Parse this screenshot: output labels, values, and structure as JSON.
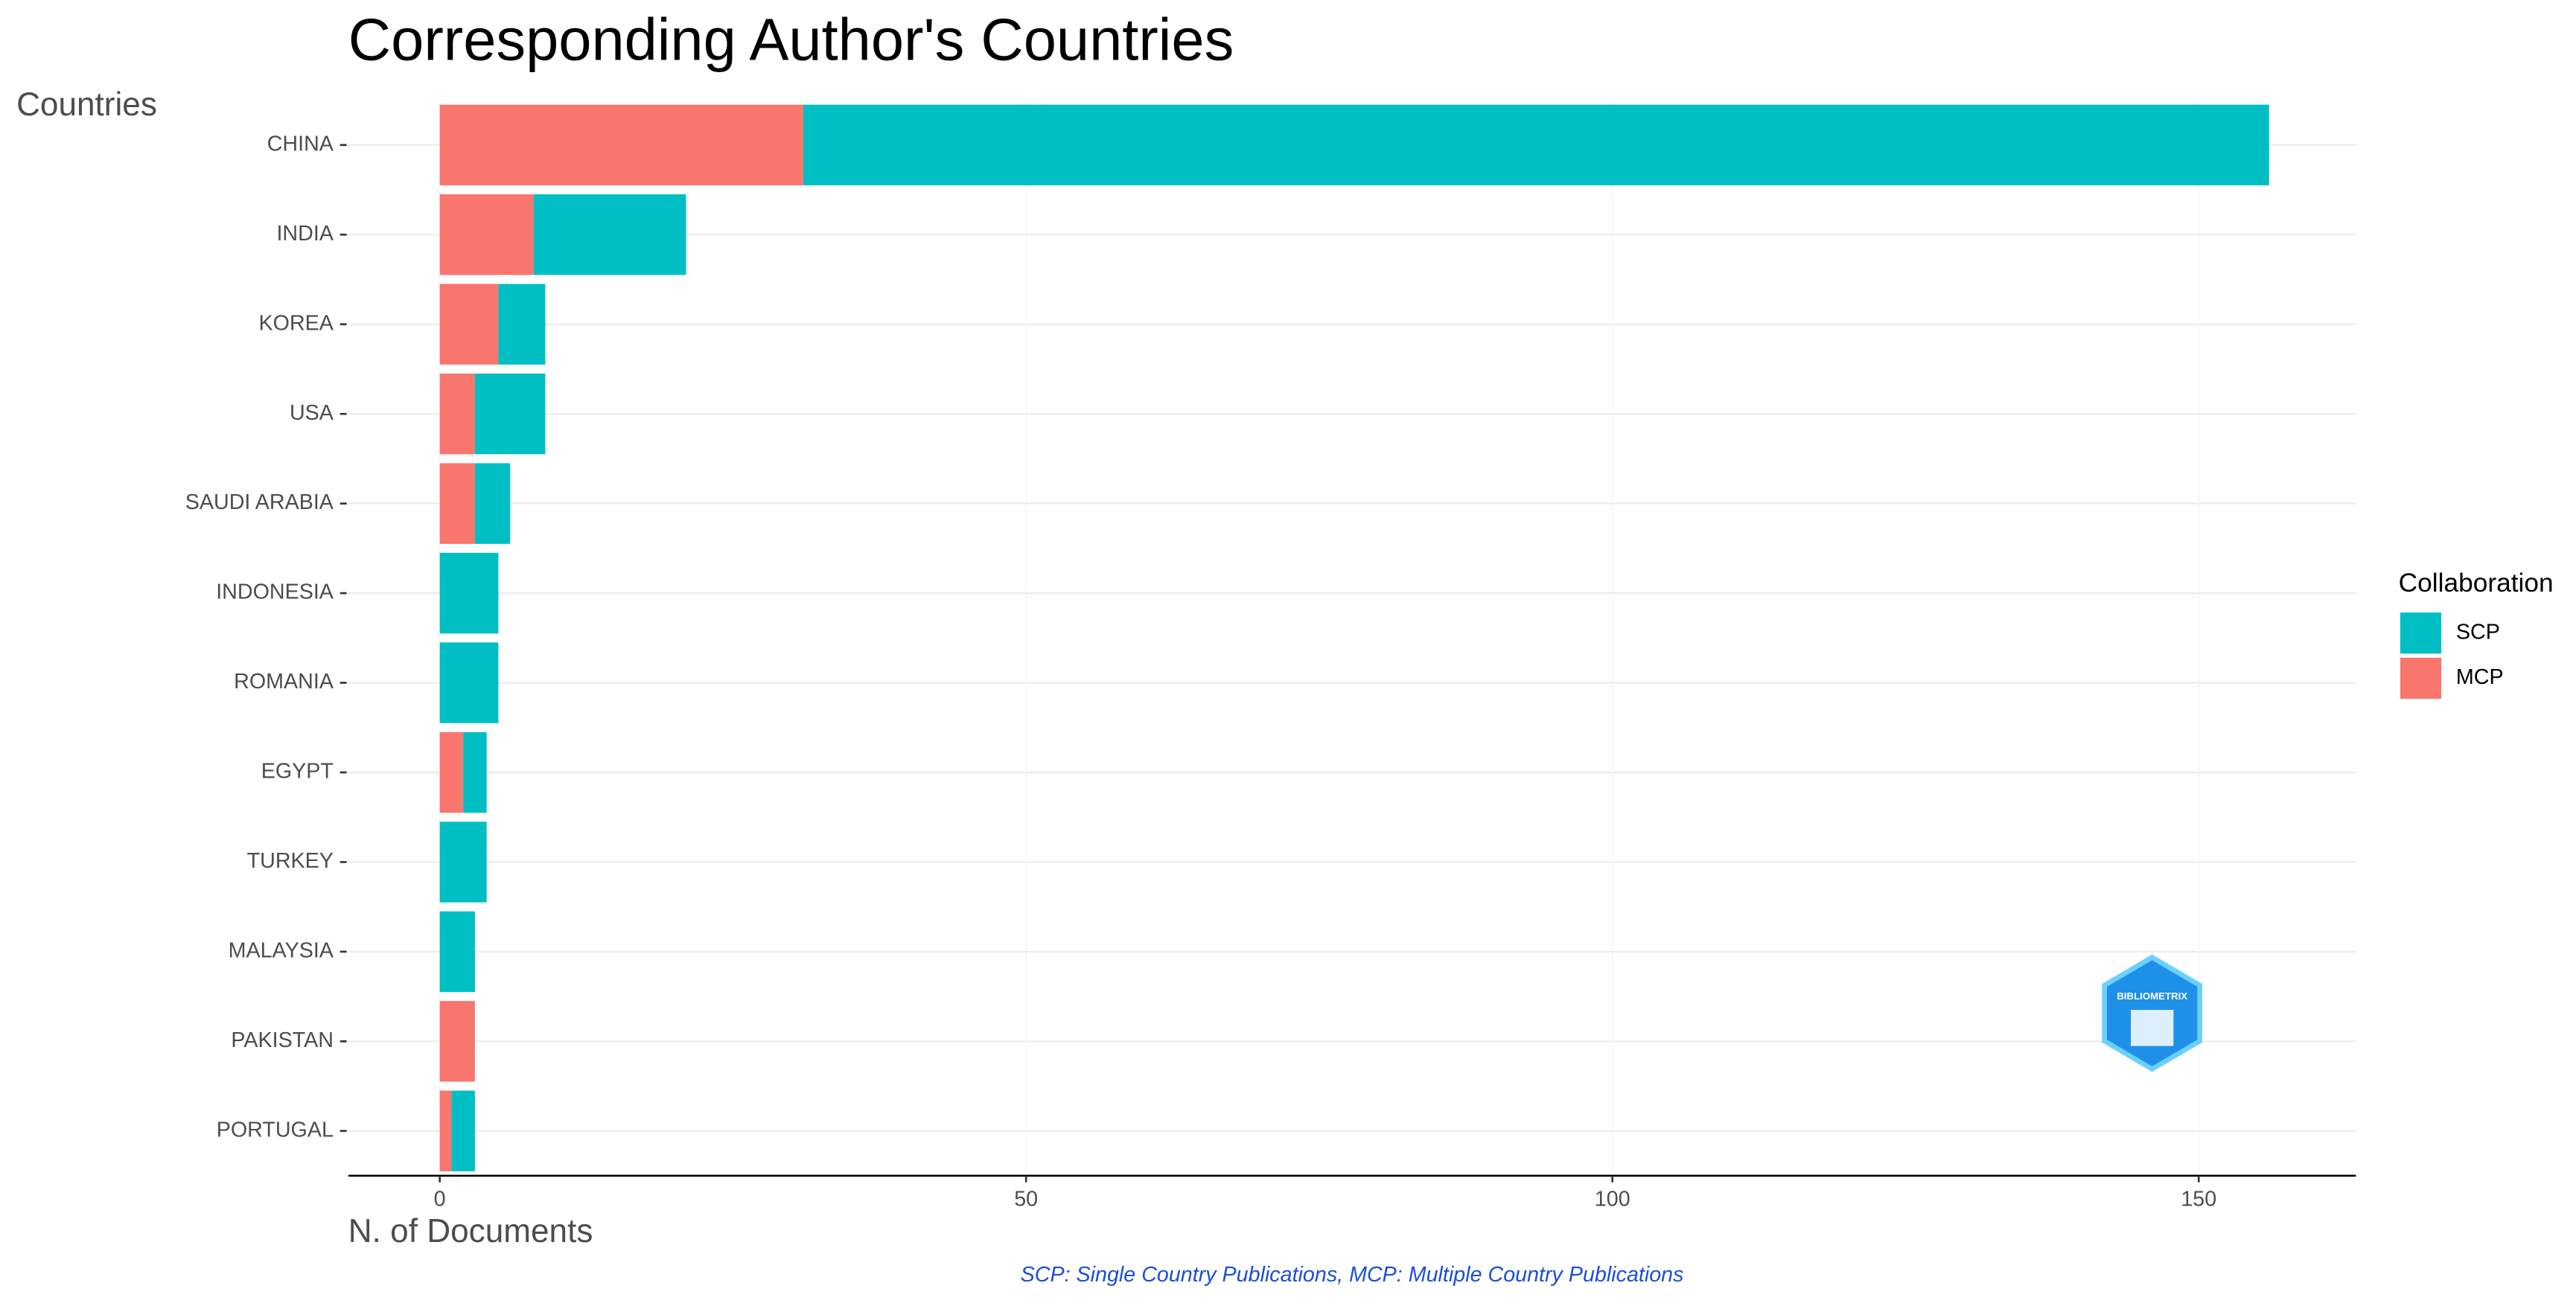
{
  "chart_data": {
    "type": "stacked-bar-horizontal",
    "title": "Corresponding Author's Countries",
    "y_label": "Countries",
    "x_label": "N. of Documents",
    "caption": "SCP: Single Country Publications, MCP: Multiple Country Publications",
    "legend_title": "Collaboration",
    "legend_position": "right",
    "logo_text": "BIBLIOMETRIX",
    "categories": [
      "CHINA",
      "INDIA",
      "KOREA",
      "USA",
      "SAUDI ARABIA",
      "INDONESIA",
      "ROMANIA",
      "EGYPT",
      "TURKEY",
      "MALAYSIA",
      "PAKISTAN",
      "PORTUGAL"
    ],
    "series": [
      {
        "name": "SCP",
        "color": "#00bfc4",
        "values": [
          125,
          13,
          4,
          6,
          3,
          5,
          5,
          2,
          4,
          3,
          0,
          2
        ]
      },
      {
        "name": "MCP",
        "color": "#f8766d",
        "values": [
          31,
          8,
          5,
          3,
          3,
          0,
          0,
          2,
          0,
          0,
          3,
          1
        ]
      }
    ],
    "xlim": [
      -7.8,
      163.4
    ],
    "xticks": [
      0,
      50,
      100,
      150
    ],
    "grid": true
  }
}
